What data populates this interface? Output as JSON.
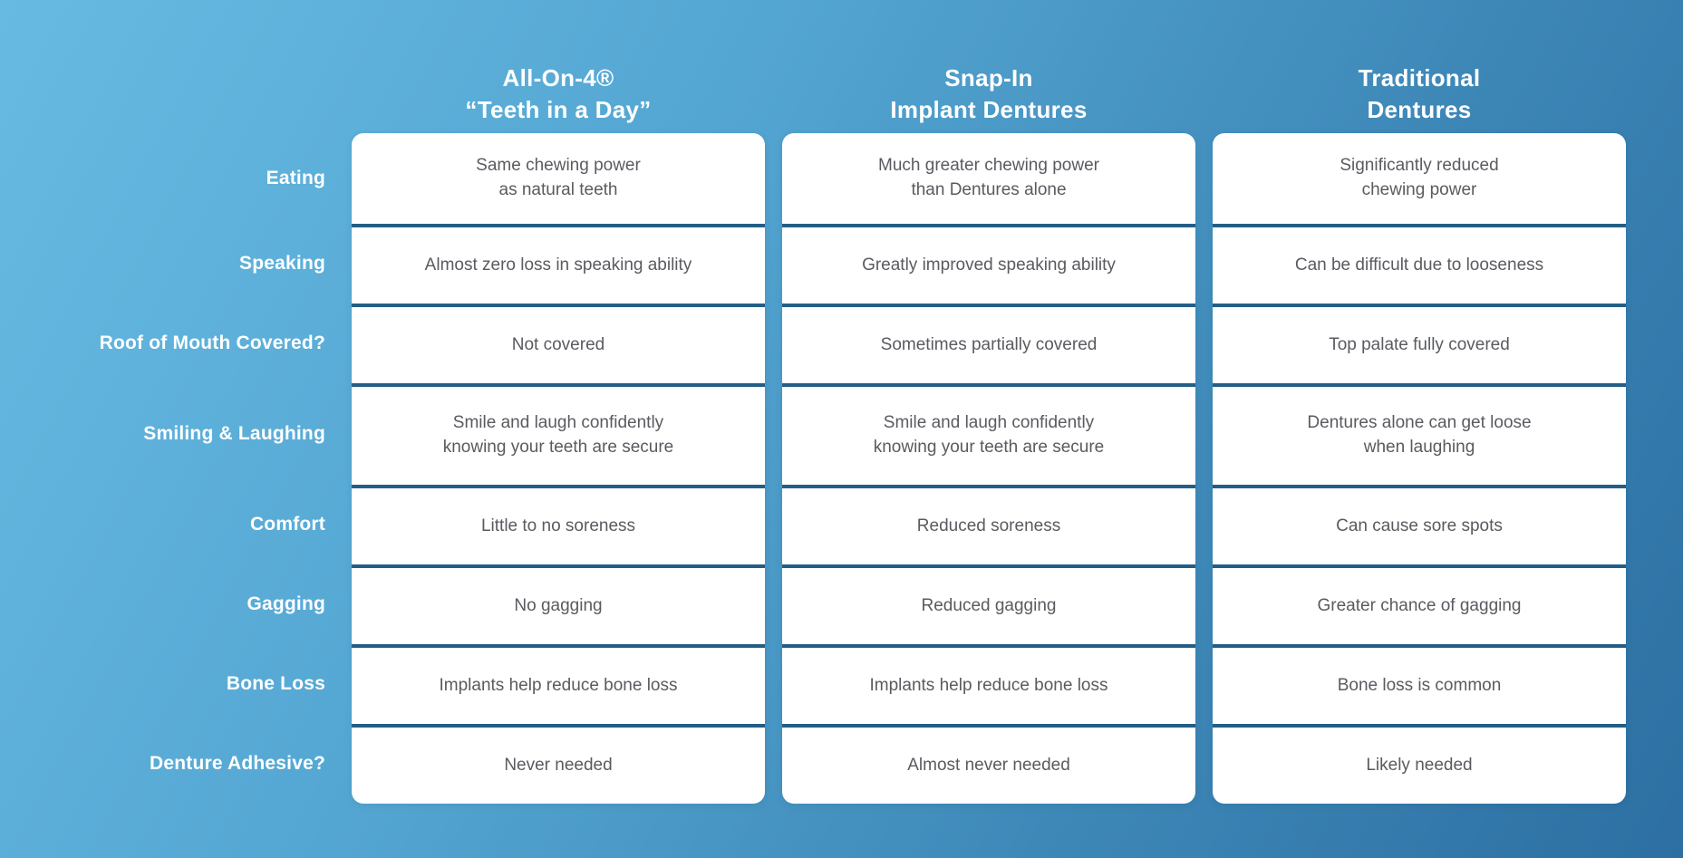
{
  "title": "Denture options comparison infographic",
  "colors": {
    "background_top_left": "#67bbe2",
    "background_bottom_right": "#2d6fa2",
    "card_background": "#ffffff",
    "divider": "#235e86",
    "header_text": "#ffffff",
    "row_label_text": "#ffffff",
    "cell_text": "#595b60"
  },
  "table": {
    "headers": [
      {
        "line1": "All-On-4®",
        "line2": "“Teeth in a Day”"
      },
      {
        "line1": "Snap-In",
        "line2": "Implant Dentures"
      },
      {
        "line1": "Traditional",
        "line2": "Dentures"
      }
    ],
    "rows": [
      {
        "label": "Eating",
        "cells": [
          "Same chewing power\nas natural teeth",
          "Much greater chewing power\nthan Dentures alone",
          "Significantly reduced\nchewing power"
        ]
      },
      {
        "label": "Speaking",
        "cells": [
          "Almost zero loss in speaking ability",
          "Greatly improved speaking ability",
          "Can be difficult due to looseness"
        ]
      },
      {
        "label": "Roof of Mouth Covered?",
        "cells": [
          "Not covered",
          "Sometimes partially covered",
          "Top palate fully covered"
        ]
      },
      {
        "label": "Smiling & Laughing",
        "cells": [
          "Smile and laugh confidently\nknowing your teeth are secure",
          "Smile and laugh confidently\nknowing your teeth are secure",
          "Dentures alone can get loose\nwhen laughing"
        ]
      },
      {
        "label": "Comfort",
        "cells": [
          "Little to no soreness",
          "Reduced soreness",
          "Can cause sore spots"
        ]
      },
      {
        "label": "Gagging",
        "cells": [
          "No gagging",
          "Reduced gagging",
          "Greater chance of gagging"
        ]
      },
      {
        "label": "Bone Loss",
        "cells": [
          "Implants help reduce bone loss",
          "Implants help reduce bone loss",
          "Bone loss is common"
        ]
      },
      {
        "label": "Denture Adhesive?",
        "cells": [
          "Never needed",
          "Almost never needed",
          "Likely needed"
        ]
      }
    ]
  },
  "chart_data": {
    "type": "table",
    "title": "Denture options comparison",
    "columns": [
      "All-On-4® “Teeth in a Day”",
      "Snap-In Implant Dentures",
      "Traditional Dentures"
    ],
    "row_labels": [
      "Eating",
      "Speaking",
      "Roof of Mouth Covered?",
      "Smiling & Laughing",
      "Comfort",
      "Gagging",
      "Bone Loss",
      "Denture Adhesive?"
    ],
    "rows": [
      [
        "Same chewing power as natural teeth",
        "Much greater chewing power than Dentures alone",
        "Significantly reduced chewing power"
      ],
      [
        "Almost zero loss in speaking ability",
        "Greatly improved speaking ability",
        "Can be difficult due to looseness"
      ],
      [
        "Not covered",
        "Sometimes partially covered",
        "Top palate fully covered"
      ],
      [
        "Smile and laugh confidently knowing your teeth are secure",
        "Smile and laugh confidently knowing your teeth are secure",
        "Dentures alone can get loose when laughing"
      ],
      [
        "Little to no soreness",
        "Reduced soreness",
        "Can cause sore spots"
      ],
      [
        "No gagging",
        "Reduced gagging",
        "Greater chance of gagging"
      ],
      [
        "Implants help reduce bone loss",
        "Implants help reduce bone loss",
        "Bone loss is common"
      ],
      [
        "Never needed",
        "Almost never needed",
        "Likely needed"
      ]
    ],
    "layout_hints": {
      "grid": "white column cards with dark blue row dividers on diagonal blue gradient background",
      "legend_position": "none"
    }
  }
}
